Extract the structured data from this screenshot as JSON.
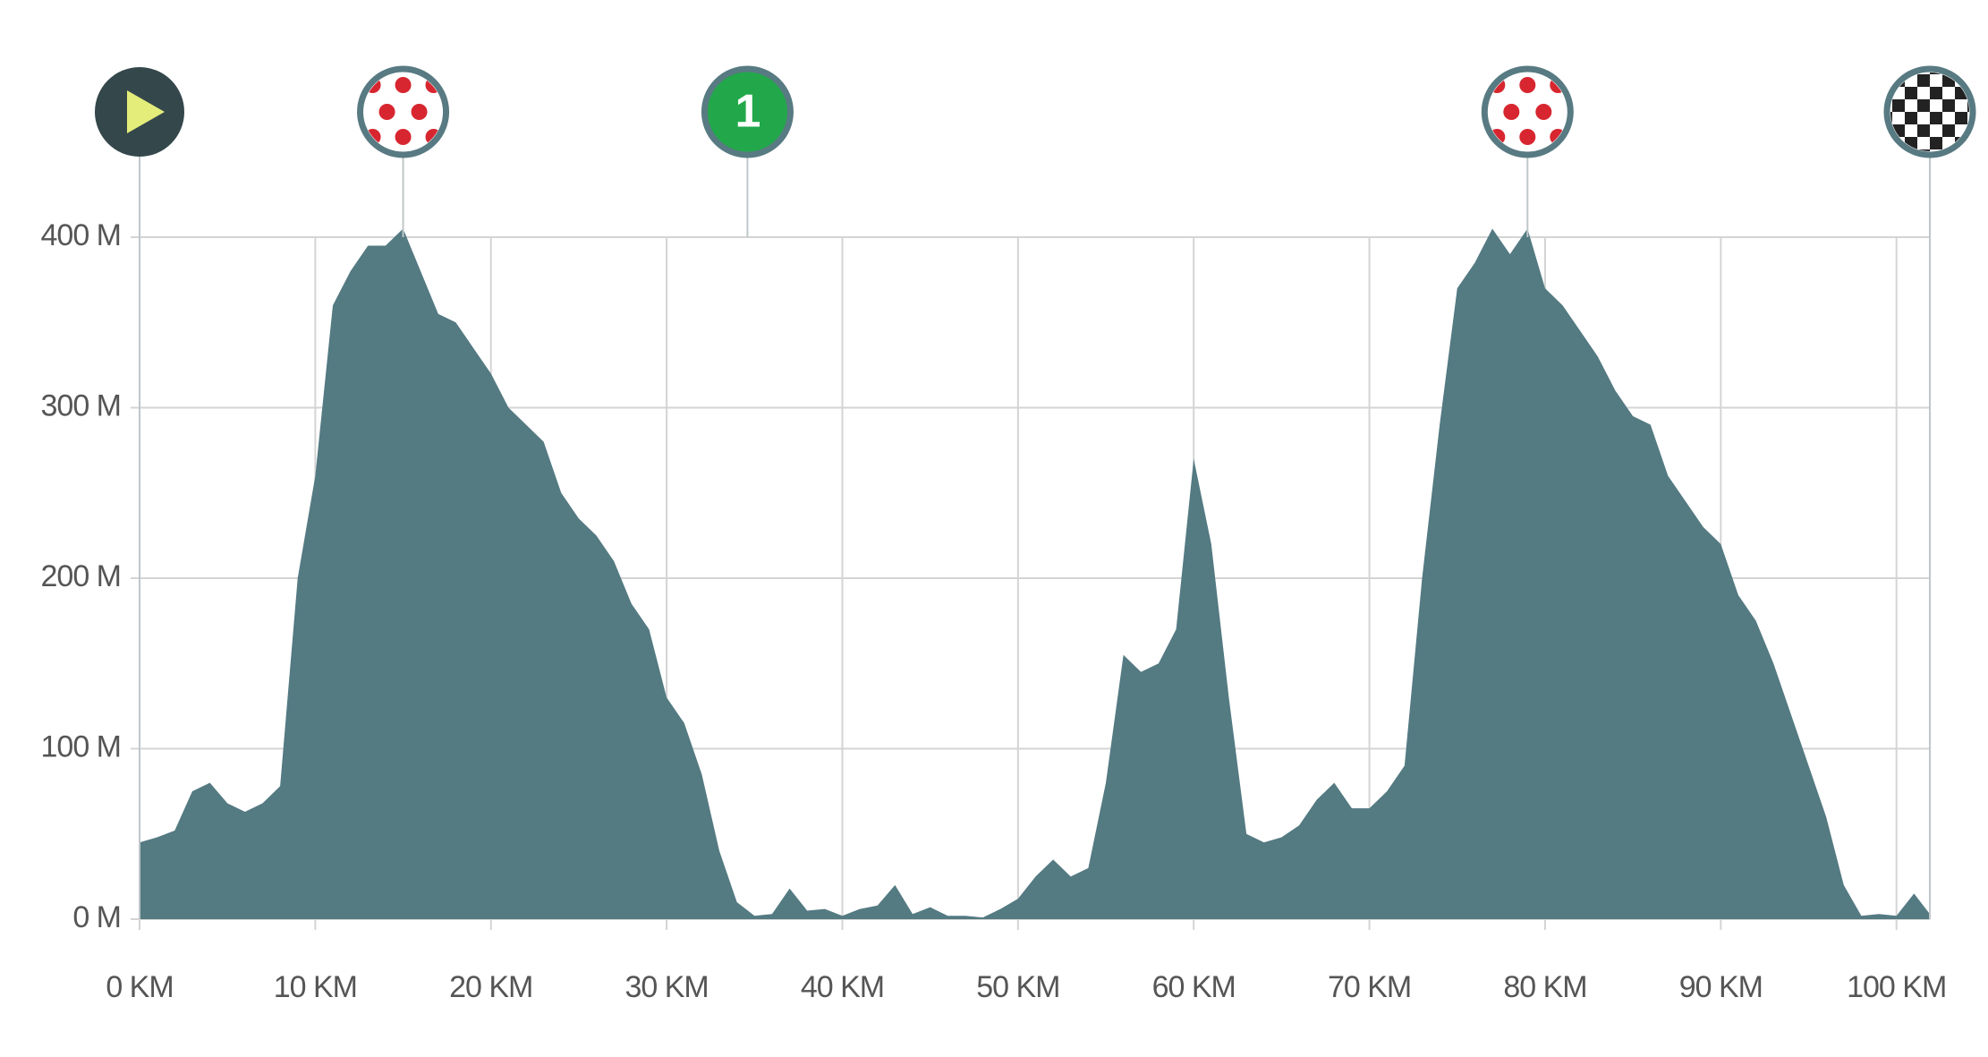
{
  "chart_data": {
    "type": "area",
    "color": "#547a82",
    "grid": true,
    "x": [
      0,
      1,
      2,
      3,
      4,
      5,
      6,
      7,
      8,
      9,
      10,
      11,
      12,
      13,
      14,
      15,
      16,
      17,
      18,
      19,
      20,
      21,
      22,
      23,
      24,
      25,
      26,
      27,
      28,
      29,
      30,
      31,
      32,
      33,
      34,
      35,
      36,
      37,
      38,
      39,
      40,
      41,
      42,
      43,
      44,
      45,
      46,
      47,
      48,
      49,
      50,
      51,
      52,
      53,
      54,
      55,
      56,
      57,
      58,
      59,
      60,
      61,
      62,
      63,
      64,
      65,
      66,
      67,
      68,
      69,
      70,
      71,
      72,
      73,
      74,
      75,
      76,
      77,
      78,
      79,
      80,
      81,
      82,
      83,
      84,
      85,
      86,
      87,
      88,
      89,
      90,
      91,
      92,
      93,
      94,
      95,
      96,
      97,
      98,
      99,
      100,
      101,
      101.9
    ],
    "values": [
      45,
      48,
      52,
      75,
      80,
      68,
      63,
      68,
      78,
      200,
      260,
      360,
      380,
      395,
      395,
      405,
      380,
      355,
      350,
      335,
      320,
      300,
      290,
      280,
      250,
      235,
      225,
      210,
      185,
      170,
      130,
      115,
      85,
      40,
      10,
      2,
      3,
      18,
      5,
      6,
      2,
      6,
      8,
      20,
      3,
      7,
      2,
      2,
      1,
      6,
      12,
      25,
      35,
      25,
      30,
      80,
      155,
      145,
      150,
      170,
      270,
      220,
      130,
      50,
      45,
      48,
      55,
      70,
      80,
      65,
      65,
      75,
      90,
      200,
      290,
      370,
      385,
      405,
      390,
      405,
      370,
      360,
      345,
      330,
      310,
      295,
      290,
      260,
      245,
      230,
      220,
      190,
      175,
      150,
      120,
      90,
      60,
      20,
      2,
      3,
      2,
      15,
      3
    ],
    "xlim": [
      0,
      101.9
    ],
    "ylim": [
      0,
      400
    ],
    "xticks": [
      {
        "value": 0,
        "label": "0 KM"
      },
      {
        "value": 10,
        "label": "10 KM"
      },
      {
        "value": 20,
        "label": "20 KM"
      },
      {
        "value": 30,
        "label": "30 KM"
      },
      {
        "value": 40,
        "label": "40 KM"
      },
      {
        "value": 50,
        "label": "50 KM"
      },
      {
        "value": 60,
        "label": "60 KM"
      },
      {
        "value": 70,
        "label": "70 KM"
      },
      {
        "value": 80,
        "label": "80 KM"
      },
      {
        "value": 90,
        "label": "90 KM"
      },
      {
        "value": 100,
        "label": "100 KM"
      }
    ],
    "yticks": [
      {
        "value": 0,
        "label": "0 M"
      },
      {
        "value": 100,
        "label": "100 M"
      },
      {
        "value": 200,
        "label": "200 M"
      },
      {
        "value": 300,
        "label": "300 M"
      },
      {
        "value": 400,
        "label": "400 M"
      }
    ],
    "markers": [
      {
        "x": 0,
        "kind": "start"
      },
      {
        "x": 15,
        "kind": "climb"
      },
      {
        "x": 34.6,
        "kind": "sprint",
        "label": "1"
      },
      {
        "x": 79,
        "kind": "climb"
      },
      {
        "x": 101.9,
        "kind": "finish"
      }
    ]
  }
}
